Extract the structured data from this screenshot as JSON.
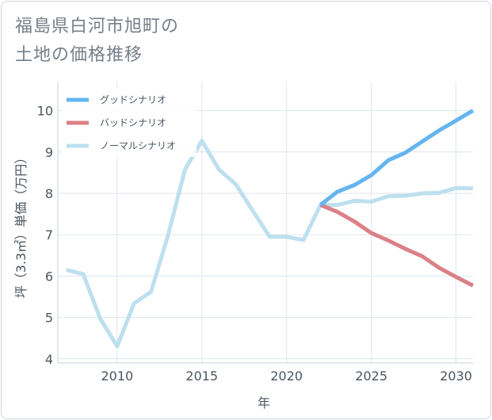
{
  "title": {
    "line1": "福島県白河市旭町の",
    "line2": "土地の価格推移"
  },
  "chart_data": {
    "type": "line",
    "xlabel": "年",
    "ylabel": "坪（3.3㎡）単価（万円）",
    "xlim": [
      2006.5,
      2031
    ],
    "ylim": [
      3.9,
      10.7
    ],
    "xticks": [
      2010,
      2015,
      2020,
      2025,
      2030
    ],
    "yticks": [
      4,
      5,
      6,
      7,
      8,
      9,
      10
    ],
    "grid": true,
    "legend_position": "top-left",
    "series": [
      {
        "name": "グッドシナリオ",
        "color": "#64b5f0",
        "x": [
          2022,
          2023,
          2024,
          2025,
          2026,
          2027,
          2028,
          2029,
          2030,
          2031
        ],
        "values": [
          7.72,
          8.04,
          8.2,
          8.44,
          8.8,
          8.98,
          9.25,
          9.52,
          9.76,
          10.0
        ]
      },
      {
        "name": "バッドシナリオ",
        "color": "#dc8088",
        "x": [
          2022,
          2023,
          2024,
          2025,
          2026,
          2027,
          2028,
          2029,
          2030,
          2031
        ],
        "values": [
          7.72,
          7.55,
          7.32,
          7.04,
          6.86,
          6.66,
          6.48,
          6.2,
          5.98,
          5.77
        ]
      },
      {
        "name": "ノーマルシナリオ",
        "color": "#bde0ef",
        "x": [
          2007,
          2008,
          2009,
          2010,
          2011,
          2012,
          2013,
          2014,
          2015,
          2016,
          2017,
          2018,
          2019,
          2020,
          2021,
          2022,
          2023,
          2024,
          2025,
          2026,
          2027,
          2028,
          2029,
          2030,
          2031
        ],
        "values": [
          6.15,
          6.05,
          4.97,
          4.3,
          5.34,
          5.62,
          6.98,
          8.57,
          9.27,
          8.58,
          8.22,
          7.58,
          6.95,
          6.95,
          6.87,
          7.72,
          7.72,
          7.82,
          7.8,
          7.93,
          7.94,
          8.0,
          8.01,
          8.13,
          8.12
        ]
      }
    ]
  }
}
